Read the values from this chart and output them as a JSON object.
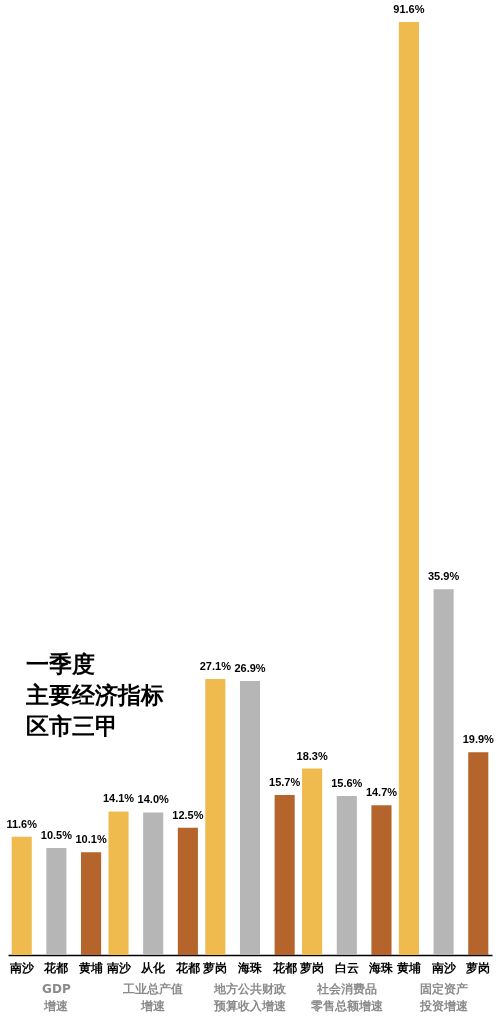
{
  "chart_data": {
    "type": "bar",
    "title": "一季度主要经济指标区市三甲",
    "categories": [
      "南沙",
      "花都",
      "黄埔",
      "南沙",
      "从化",
      "花都",
      "萝岗",
      "海珠",
      "花都",
      "萝岗",
      "白云",
      "海珠",
      "黄埔",
      "南沙",
      "萝岗"
    ],
    "values": [
      11.6,
      10.5,
      10.1,
      14.1,
      14.0,
      12.5,
      27.1,
      26.9,
      15.7,
      18.3,
      15.6,
      14.7,
      91.6,
      35.9,
      19.9
    ],
    "value_labels": [
      "11.6%",
      "10.5%",
      "10.1%",
      "14.1%",
      "14.0%",
      "12.5%",
      "27.1%",
      "26.9%",
      "15.7%",
      "18.3%",
      "15.6%",
      "14.7%",
      "91.6%",
      "35.9%",
      "19.9%"
    ],
    "colors": [
      "#efbb4f",
      "#b6b6b6",
      "#b5652b",
      "#efbb4f",
      "#b6b6b6",
      "#b5652b",
      "#efbb4f",
      "#b6b6b6",
      "#b5652b",
      "#efbb4f",
      "#b6b6b6",
      "#b5652b",
      "#efbb4f",
      "#b6b6b6",
      "#b5652b"
    ],
    "annotations": [
      "GDP增速",
      "工业总产值增速",
      "地方公共财政预算收入增速",
      "社会消费品零售总额增速",
      "固定资产投资增速"
    ]
  }
}
